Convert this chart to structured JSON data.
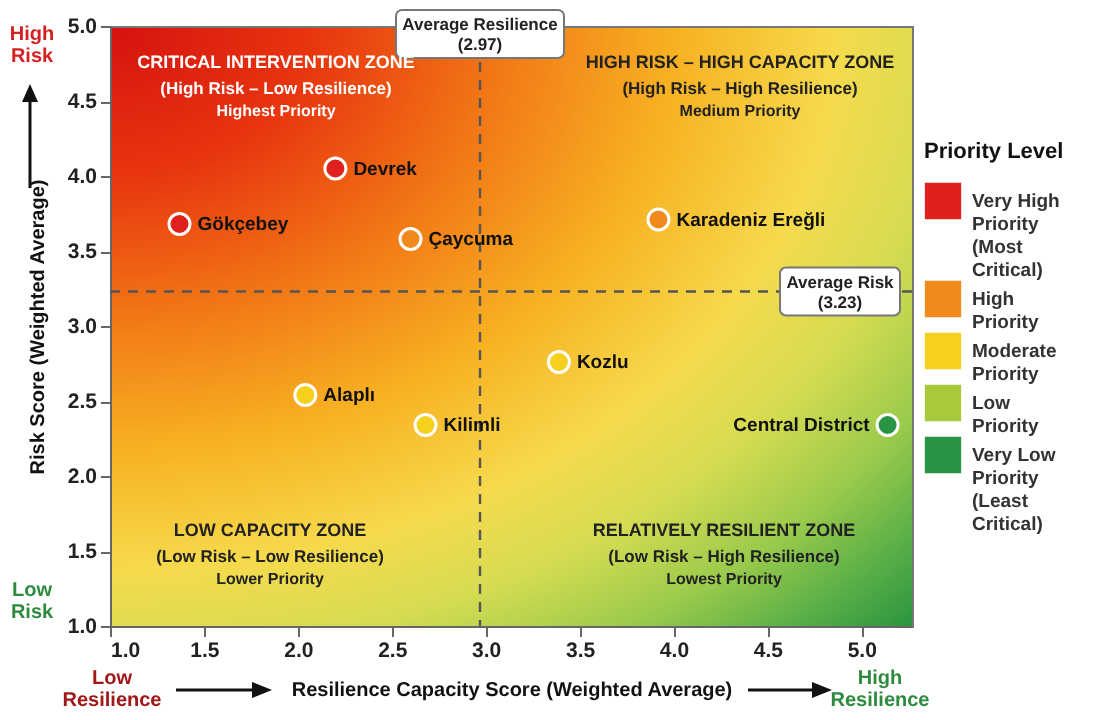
{
  "chart_data": {
    "type": "scatter",
    "xlabel": "Resilience Capacity Score (Weighted Average)",
    "ylabel": "Risk Score (Weighted Average)",
    "legend_title": "Priority Level",
    "xlim": [
      1,
      5.27
    ],
    "ylim": [
      1,
      5
    ],
    "xticks": [
      {
        "value": 1,
        "label": "1.0"
      },
      {
        "value": 1.5,
        "label": "1.5"
      },
      {
        "value": 2,
        "label": "2.0"
      },
      {
        "value": 2.5,
        "label": "2.5"
      },
      {
        "value": 3,
        "label": "3.0"
      },
      {
        "value": 3.5,
        "label": "3.5"
      },
      {
        "value": 4,
        "label": "4.0"
      },
      {
        "value": 4.5,
        "label": "4.5"
      },
      {
        "value": 5,
        "label": "5.0"
      }
    ],
    "yticks": [
      {
        "value": 1,
        "label": "1.0"
      },
      {
        "value": 1.5,
        "label": "1.5"
      },
      {
        "value": 2,
        "label": "2.0"
      },
      {
        "value": 2.5,
        "label": "2.5"
      },
      {
        "value": 3,
        "label": "3.0"
      },
      {
        "value": 3.5,
        "label": "3.5"
      },
      {
        "value": 4,
        "label": "4.0"
      },
      {
        "value": 4.5,
        "label": "4.5"
      },
      {
        "value": 5,
        "label": "5.0"
      }
    ],
    "marker": "circle",
    "grid": false,
    "legend": "right",
    "series": [
      {
        "name": "Very High Priority (Most Critical)",
        "color": "#e0201c",
        "x": [
          2.2,
          1.37
        ],
        "values": [
          4.05,
          3.68
        ]
      },
      {
        "name": "High Priority",
        "color": "#f08a1c",
        "x": [
          2.6,
          3.92
        ],
        "values": [
          3.58,
          3.71
        ]
      },
      {
        "name": "Moderate Priority",
        "color": "#f5d01c",
        "x": [
          2.04,
          2.68,
          3.39
        ],
        "values": [
          2.54,
          2.34,
          2.76
        ]
      },
      {
        "name": "Low Priority",
        "color": "#a9c93c"
      },
      {
        "name": "Very Low Priority (Least Critical)",
        "color": "#2a9445",
        "x": [
          5.14
        ],
        "values": [
          2.34
        ]
      }
    ],
    "ref_lines": [
      {
        "axis": "x",
        "value": 2.97,
        "label": "Average Resilience\n(2.97)",
        "line_style": "dashed",
        "color": "#555555"
      },
      {
        "axis": "y",
        "value": 3.23,
        "label": "Average Risk\n(3.23)",
        "line_style": "dashed",
        "color": "#555555"
      }
    ],
    "annotations": [
      "CRITICAL INTERVENTION ZONE",
      "(High Risk – Low Resilience)",
      "Highest Priority",
      "HIGH RISK – HIGH CAPACITY ZONE",
      "(High Risk – High Resilience)",
      "Medium Priority",
      "LOW CAPACITY ZONE",
      "(Low Risk – Low Resilience)",
      "Lower Priority",
      "RELATIVELY RESILIENT ZONE",
      "(Low Risk – High Resilience)",
      "Lowest Priority",
      "High Risk",
      "Low Risk",
      "Low Resilience",
      "High Resilience",
      {
        "text": "Devrek",
        "x": 2.2,
        "y": 4.05
      },
      {
        "text": "Gökçebey",
        "x": 1.37,
        "y": 3.68
      },
      {
        "text": "Çaycuma",
        "x": 2.6,
        "y": 3.58
      },
      {
        "text": "Karadeniz Ereğli",
        "x": 3.92,
        "y": 3.71
      },
      {
        "text": "Alaplı",
        "x": 2.04,
        "y": 2.54
      },
      {
        "text": "Kilimli",
        "x": 2.68,
        "y": 2.34
      },
      {
        "text": "Kozlu",
        "x": 3.39,
        "y": 2.76
      },
      {
        "text": "Central District",
        "x": 5.14,
        "y": 2.34
      }
    ]
  }
}
